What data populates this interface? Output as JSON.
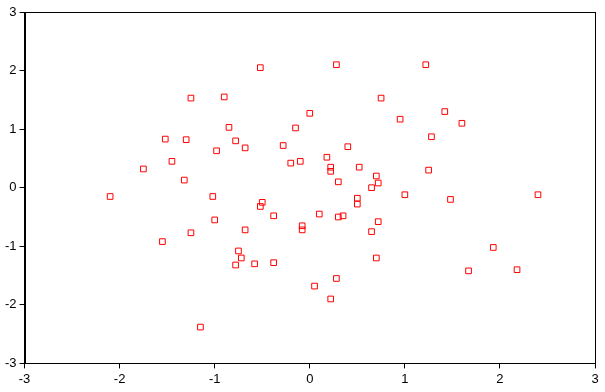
{
  "chart_data": {
    "type": "scatter",
    "x": [
      -2.1,
      -1.75,
      -1.55,
      -1.52,
      -1.45,
      -1.3,
      -1.32,
      -1.25,
      -1.25,
      -1.15,
      -1.02,
      -1.0,
      -0.98,
      -0.9,
      -0.85,
      -0.78,
      -0.78,
      -0.75,
      -0.72,
      -0.68,
      -0.68,
      -0.58,
      -0.52,
      -0.52,
      -0.5,
      -0.38,
      -0.38,
      -0.28,
      -0.2,
      -0.15,
      -0.1,
      -0.08,
      -0.08,
      0.0,
      0.05,
      0.1,
      0.18,
      0.22,
      0.22,
      0.22,
      0.28,
      0.28,
      0.3,
      0.3,
      0.35,
      0.4,
      0.5,
      0.5,
      0.52,
      0.65,
      0.65,
      0.7,
      0.7,
      0.72,
      0.72,
      0.75,
      0.95,
      1.0,
      1.22,
      1.25,
      1.28,
      1.42,
      1.48,
      1.6,
      1.67,
      1.93,
      2.18,
      2.4
    ],
    "values": [
      -0.15,
      0.32,
      -0.92,
      0.83,
      0.45,
      0.82,
      0.13,
      1.53,
      -0.77,
      -2.38,
      -0.15,
      -0.55,
      0.63,
      1.55,
      1.03,
      0.8,
      -1.32,
      -1.08,
      -1.2,
      0.68,
      -0.72,
      -1.3,
      2.05,
      -0.32,
      -0.25,
      -0.48,
      -1.28,
      0.72,
      0.42,
      1.02,
      0.45,
      -0.72,
      -0.65,
      1.27,
      -1.68,
      -0.45,
      0.52,
      0.35,
      0.28,
      -1.9,
      2.1,
      -1.55,
      0.1,
      -0.5,
      -0.48,
      0.7,
      -0.18,
      -0.28,
      0.35,
      0.0,
      -0.75,
      0.2,
      -1.2,
      0.08,
      -0.58,
      1.53,
      1.17,
      -0.12,
      2.1,
      0.3,
      0.87,
      1.3,
      -0.2,
      1.1,
      -1.42,
      -1.02,
      -1.4,
      -0.12
    ],
    "color": "#ff0000",
    "marker": "square",
    "xlim": [
      -3,
      3
    ],
    "xticks": [
      -3,
      -2,
      -1,
      0,
      1,
      2,
      3
    ],
    "ylim": [
      -3,
      3
    ],
    "yticks": [
      -3,
      -2,
      -1,
      0,
      1,
      2,
      3
    ],
    "grid": false
  }
}
